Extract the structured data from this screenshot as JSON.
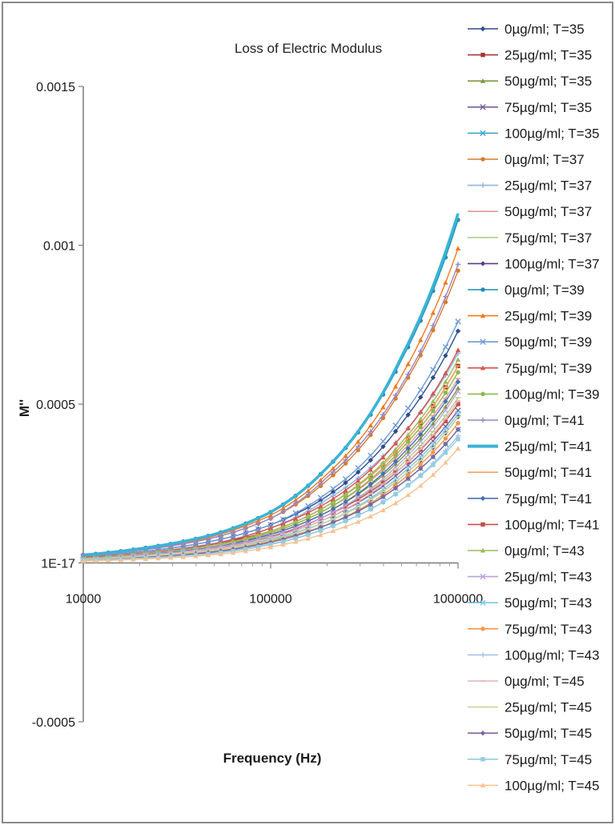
{
  "chart_data": {
    "type": "line",
    "title": "Loss of Electric Modulus",
    "xlabel": "Frequency (Hz)",
    "ylabel": "M''",
    "x_scale": "log",
    "xlim": [
      10000,
      1000000
    ],
    "ylim": [
      -0.0005,
      0.0015
    ],
    "x_ticks": [
      10000,
      100000,
      1000000
    ],
    "x_tick_labels": [
      "10000",
      "100000",
      "1000000"
    ],
    "y_ticks": [
      0.0015,
      0.001,
      0.0005,
      0,
      -0.0005
    ],
    "y_tick_labels": [
      "0.0015",
      "0.001",
      "0.0005",
      "1E-17",
      "-0.0005"
    ],
    "grid": false,
    "legend_position": "right",
    "x": [
      10000,
      20000,
      50000,
      100000,
      200000,
      500000,
      1000000
    ],
    "series": [
      {
        "name": "0µg/ml; T=35",
        "color": "#2e4d8a",
        "marker": "diamond",
        "y": [
          2e-05,
          3.5e-05,
          7e-05,
          0.00012,
          0.00021,
          0.00044,
          0.00073
        ]
      },
      {
        "name": "25µg/ml; T=35",
        "color": "#a33a36",
        "marker": "square",
        "y": [
          2e-05,
          3e-05,
          6e-05,
          0.0001,
          0.00018,
          0.00037,
          0.00062
        ]
      },
      {
        "name": "50µg/ml; T=35",
        "color": "#7f9a3e",
        "marker": "triangle",
        "y": [
          1.5e-05,
          2.8e-05,
          5.5e-05,
          9e-05,
          0.00016,
          0.00033,
          0.00055
        ]
      },
      {
        "name": "75µg/ml; T=35",
        "color": "#7a5d9e",
        "marker": "x",
        "y": [
          1.2e-05,
          2.2e-05,
          4.5e-05,
          8e-05,
          0.00014,
          0.00029,
          0.00048
        ]
      },
      {
        "name": "100µg/ml; T=35",
        "color": "#3da6c9",
        "marker": "x",
        "y": [
          1e-05,
          2e-05,
          4e-05,
          7e-05,
          0.00012,
          0.00025,
          0.00042
        ]
      },
      {
        "name": "0µg/ml; T=37",
        "color": "#d97b2b",
        "marker": "circle",
        "y": [
          2.5e-05,
          4e-05,
          8e-05,
          0.00014,
          0.00026,
          0.00055,
          0.00092
        ]
      },
      {
        "name": "25µg/ml; T=37",
        "color": "#8fb4e0",
        "marker": "plus",
        "y": [
          1.8e-05,
          3.2e-05,
          6.2e-05,
          0.00011,
          0.0002,
          0.0004,
          0.00066
        ]
      },
      {
        "name": "50µg/ml; T=37",
        "color": "#e39999",
        "marker": "dash",
        "y": [
          1.5e-05,
          2.8e-05,
          5.5e-05,
          9.5e-05,
          0.00017,
          0.00035,
          0.00058
        ]
      },
      {
        "name": "75µg/ml; T=37",
        "color": "#b5cc8a",
        "marker": "dash",
        "y": [
          1.2e-05,
          2.4e-05,
          4.8e-05,
          8.5e-05,
          0.00015,
          0.00031,
          0.00052
        ]
      },
      {
        "name": "100µg/ml; T=37",
        "color": "#5a3f86",
        "marker": "diamond",
        "y": [
          1e-05,
          2e-05,
          4e-05,
          7.5e-05,
          0.00013,
          0.00027,
          0.00046
        ]
      },
      {
        "name": "0µg/ml; T=39",
        "color": "#1f8fb3",
        "marker": "circle",
        "y": [
          2.5e-05,
          4.5e-05,
          9e-05,
          0.00016,
          0.0003,
          0.00064,
          0.00108
        ]
      },
      {
        "name": "25µg/ml; T=39",
        "color": "#f07a1e",
        "marker": "triangle",
        "y": [
          2.5e-05,
          4e-05,
          8.5e-05,
          0.00015,
          0.00028,
          0.00059,
          0.00099
        ]
      },
      {
        "name": "50µg/ml; T=39",
        "color": "#6d9ad6",
        "marker": "x",
        "y": [
          2e-05,
          3.5e-05,
          7e-05,
          0.00012,
          0.00022,
          0.00046,
          0.00076
        ]
      },
      {
        "name": "75µg/ml; T=39",
        "color": "#d9534f",
        "marker": "triangle",
        "y": [
          1.8e-05,
          3e-05,
          6e-05,
          0.00011,
          0.00019,
          0.0004,
          0.00067
        ]
      },
      {
        "name": "100µg/ml; T=39",
        "color": "#8db84a",
        "marker": "circle",
        "y": [
          1.5e-05,
          2.8e-05,
          5.5e-05,
          9.5e-05,
          0.00017,
          0.00036,
          0.0006
        ]
      },
      {
        "name": "0µg/ml; T=41",
        "color": "#9b86c4",
        "marker": "plus",
        "y": [
          2.2e-05,
          4e-05,
          8e-05,
          0.00014,
          0.00027,
          0.00056,
          0.00094
        ]
      },
      {
        "name": "25µg/ml; T=41",
        "color": "#3bb3d6",
        "marker": "none",
        "y": [
          2.5e-05,
          4.5e-05,
          9e-05,
          0.00016,
          0.0003,
          0.00065,
          0.0011
        ]
      },
      {
        "name": "50µg/ml; T=41",
        "color": "#f4a261",
        "marker": "dash",
        "y": [
          1.5e-05,
          2.8e-05,
          5.5e-05,
          0.0001,
          0.00018,
          0.00037,
          0.00062
        ]
      },
      {
        "name": "75µg/ml; T=41",
        "color": "#4a6fb3",
        "marker": "diamond",
        "y": [
          1.5e-05,
          2.6e-05,
          5e-05,
          9e-05,
          0.00016,
          0.00034,
          0.00057
        ]
      },
      {
        "name": "100µg/ml; T=41",
        "color": "#c0504d",
        "marker": "square",
        "y": [
          1.2e-05,
          2.4e-05,
          4.6e-05,
          8.2e-05,
          0.00015,
          0.0003,
          0.0005
        ]
      },
      {
        "name": "0µg/ml; T=43",
        "color": "#9bbb59",
        "marker": "triangle",
        "y": [
          1.5e-05,
          2.8e-05,
          5.5e-05,
          0.0001,
          0.00018,
          0.00038,
          0.00064
        ]
      },
      {
        "name": "25µg/ml; T=43",
        "color": "#b9a4d9",
        "marker": "x",
        "y": [
          1.2e-05,
          2.4e-05,
          4.8e-05,
          8.5e-05,
          0.00015,
          0.00032,
          0.00054
        ]
      },
      {
        "name": "50µg/ml; T=43",
        "color": "#7cc8e6",
        "marker": "x",
        "y": [
          1e-05,
          2e-05,
          4e-05,
          7.5e-05,
          0.00013,
          0.00028,
          0.00047
        ]
      },
      {
        "name": "75µg/ml; T=43",
        "color": "#f79646",
        "marker": "circle",
        "y": [
          1e-05,
          1.8e-05,
          3.6e-05,
          6.8e-05,
          0.00012,
          0.00026,
          0.00044
        ]
      },
      {
        "name": "100µg/ml; T=43",
        "color": "#a6c3e8",
        "marker": "plus",
        "y": [
          8e-06,
          1.6e-05,
          3.2e-05,
          6e-05,
          0.00011,
          0.00023,
          0.0004
        ]
      },
      {
        "name": "0µg/ml; T=45",
        "color": "#e6b3b3",
        "marker": "dash",
        "y": [
          1.2e-05,
          2.2e-05,
          4.4e-05,
          8e-05,
          0.00014,
          0.0003,
          0.00051
        ]
      },
      {
        "name": "25µg/ml; T=45",
        "color": "#c4d79b",
        "marker": "dash",
        "y": [
          1e-05,
          2e-05,
          4e-05,
          7.2e-05,
          0.00013,
          0.00027,
          0.00046
        ]
      },
      {
        "name": "50µg/ml; T=45",
        "color": "#8064a2",
        "marker": "diamond",
        "y": [
          8e-06,
          1.7e-05,
          3.5e-05,
          6.5e-05,
          0.00012,
          0.00025,
          0.00042
        ]
      },
      {
        "name": "75µg/ml; T=45",
        "color": "#93cddd",
        "marker": "square",
        "y": [
          8e-06,
          1.5e-05,
          3e-05,
          5.8e-05,
          0.00011,
          0.00023,
          0.00039
        ]
      },
      {
        "name": "100µg/ml; T=45",
        "color": "#fac090",
        "marker": "triangle",
        "y": [
          6e-06,
          1.2e-05,
          2.6e-05,
          5e-05,
          9.5e-05,
          0.0002,
          0.00036
        ]
      }
    ]
  }
}
